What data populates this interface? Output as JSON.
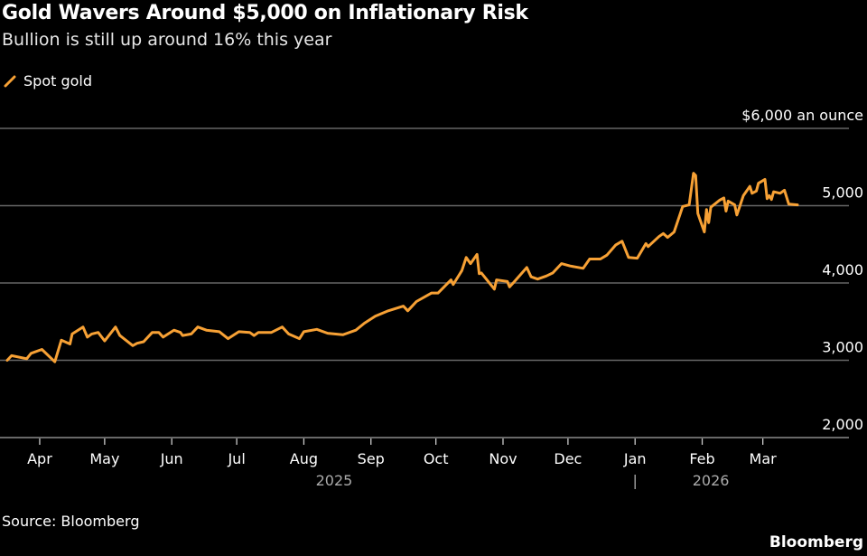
{
  "header": {
    "title": "Gold Wavers Around $5,000 on Inflationary Risk",
    "subtitle": "Bullion is still up around 16% this year"
  },
  "footer": {
    "source": "Source: Bloomberg",
    "logo": "Bloomberg"
  },
  "colors": {
    "line": "#f7a135",
    "grid": "#666666",
    "background": "#000000",
    "text": "#ffffff"
  },
  "chart_data": {
    "type": "line",
    "title": "Gold Wavers Around $5,000 on Inflationary Risk",
    "subtitle": "Bullion is still up around 16% this year",
    "legend": {
      "placement": "top-left",
      "entries": [
        "Spot gold"
      ]
    },
    "xlim": [
      "2025-03-17",
      "2026-03-17"
    ],
    "ylim": [
      2000,
      6000
    ],
    "y_ticks": [
      2000,
      3000,
      4000,
      5000,
      6000
    ],
    "y_tick_labels": [
      "2,000",
      "3,000",
      "4,000",
      "5,000",
      "$6,000 an ounce"
    ],
    "y_axis_side": "right",
    "grid": true,
    "x_ticks": [
      "2025-04-01",
      "2025-05-01",
      "2025-06-01",
      "2025-07-01",
      "2025-08-01",
      "2025-09-01",
      "2025-10-01",
      "2025-11-01",
      "2025-12-01",
      "2026-01-01",
      "2026-02-01",
      "2026-03-01"
    ],
    "x_tick_labels": [
      "Apr",
      "May",
      "Jun",
      "Jul",
      "Aug",
      "Sep",
      "Oct",
      "Nov",
      "Dec",
      "Jan",
      "Feb",
      "Mar"
    ],
    "year_labels": [
      {
        "label": "2025",
        "date": "2025-08-15"
      },
      {
        "label": "2026",
        "date": "2026-02-05"
      }
    ],
    "year_separator": {
      "label": "|",
      "date": "2026-01-01"
    },
    "series": [
      {
        "name": "Spot gold",
        "color": "#f7a135",
        "points": [
          [
            "2025-03-17",
            3000
          ],
          [
            "2025-03-19",
            3060
          ],
          [
            "2025-03-26",
            3020
          ],
          [
            "2025-03-28",
            3090
          ],
          [
            "2025-04-02",
            3140
          ],
          [
            "2025-04-08",
            2980
          ],
          [
            "2025-04-11",
            3260
          ],
          [
            "2025-04-15",
            3210
          ],
          [
            "2025-04-16",
            3340
          ],
          [
            "2025-04-21",
            3430
          ],
          [
            "2025-04-23",
            3300
          ],
          [
            "2025-04-25",
            3340
          ],
          [
            "2025-04-28",
            3360
          ],
          [
            "2025-05-01",
            3250
          ],
          [
            "2025-05-06",
            3430
          ],
          [
            "2025-05-08",
            3320
          ],
          [
            "2025-05-14",
            3190
          ],
          [
            "2025-05-16",
            3220
          ],
          [
            "2025-05-19",
            3240
          ],
          [
            "2025-05-23",
            3360
          ],
          [
            "2025-05-26",
            3360
          ],
          [
            "2025-05-28",
            3300
          ],
          [
            "2025-06-02",
            3390
          ],
          [
            "2025-06-05",
            3360
          ],
          [
            "2025-06-06",
            3320
          ],
          [
            "2025-06-10",
            3340
          ],
          [
            "2025-06-13",
            3430
          ],
          [
            "2025-06-17",
            3390
          ],
          [
            "2025-06-23",
            3370
          ],
          [
            "2025-06-27",
            3280
          ],
          [
            "2025-07-02",
            3370
          ],
          [
            "2025-07-07",
            3360
          ],
          [
            "2025-07-09",
            3320
          ],
          [
            "2025-07-11",
            3360
          ],
          [
            "2025-07-17",
            3360
          ],
          [
            "2025-07-22",
            3430
          ],
          [
            "2025-07-25",
            3340
          ],
          [
            "2025-07-30",
            3280
          ],
          [
            "2025-08-01",
            3370
          ],
          [
            "2025-08-07",
            3400
          ],
          [
            "2025-08-12",
            3350
          ],
          [
            "2025-08-19",
            3330
          ],
          [
            "2025-08-25",
            3390
          ],
          [
            "2025-08-29",
            3480
          ],
          [
            "2025-09-03",
            3570
          ],
          [
            "2025-09-09",
            3640
          ],
          [
            "2025-09-16",
            3700
          ],
          [
            "2025-09-18",
            3640
          ],
          [
            "2025-09-22",
            3760
          ],
          [
            "2025-09-29",
            3870
          ],
          [
            "2025-10-02",
            3870
          ],
          [
            "2025-10-08",
            4040
          ],
          [
            "2025-10-09",
            3980
          ],
          [
            "2025-10-13",
            4160
          ],
          [
            "2025-10-15",
            4330
          ],
          [
            "2025-10-17",
            4250
          ],
          [
            "2025-10-20",
            4370
          ],
          [
            "2025-10-21",
            4120
          ],
          [
            "2025-10-22",
            4130
          ],
          [
            "2025-10-28",
            3920
          ],
          [
            "2025-10-29",
            4040
          ],
          [
            "2025-11-03",
            4020
          ],
          [
            "2025-11-04",
            3950
          ],
          [
            "2025-11-06",
            4010
          ],
          [
            "2025-11-12",
            4200
          ],
          [
            "2025-11-14",
            4080
          ],
          [
            "2025-11-17",
            4050
          ],
          [
            "2025-11-21",
            4090
          ],
          [
            "2025-11-24",
            4130
          ],
          [
            "2025-11-28",
            4250
          ],
          [
            "2025-12-02",
            4220
          ],
          [
            "2025-12-08",
            4190
          ],
          [
            "2025-12-11",
            4310
          ],
          [
            "2025-12-16",
            4310
          ],
          [
            "2025-12-19",
            4360
          ],
          [
            "2025-12-23",
            4490
          ],
          [
            "2025-12-26",
            4540
          ],
          [
            "2025-12-29",
            4330
          ],
          [
            "2026-01-02",
            4320
          ],
          [
            "2026-01-06",
            4510
          ],
          [
            "2026-01-07",
            4470
          ],
          [
            "2026-01-12",
            4600
          ],
          [
            "2026-01-14",
            4640
          ],
          [
            "2026-01-16",
            4590
          ],
          [
            "2026-01-19",
            4660
          ],
          [
            "2026-01-23",
            4990
          ],
          [
            "2026-01-26",
            5010
          ],
          [
            "2026-01-28",
            5420
          ],
          [
            "2026-01-29",
            5390
          ],
          [
            "2026-01-30",
            4900
          ],
          [
            "2026-02-02",
            4660
          ],
          [
            "2026-02-03",
            4950
          ],
          [
            "2026-02-04",
            4780
          ],
          [
            "2026-02-05",
            4980
          ],
          [
            "2026-02-09",
            5070
          ],
          [
            "2026-02-11",
            5100
          ],
          [
            "2026-02-12",
            4930
          ],
          [
            "2026-02-13",
            5060
          ],
          [
            "2026-02-16",
            5010
          ],
          [
            "2026-02-17",
            4880
          ],
          [
            "2026-02-20",
            5130
          ],
          [
            "2026-02-23",
            5250
          ],
          [
            "2026-02-24",
            5160
          ],
          [
            "2026-02-26",
            5190
          ],
          [
            "2026-02-27",
            5290
          ],
          [
            "2026-03-02",
            5340
          ],
          [
            "2026-03-03",
            5090
          ],
          [
            "2026-03-04",
            5130
          ],
          [
            "2026-03-05",
            5080
          ],
          [
            "2026-03-06",
            5180
          ],
          [
            "2026-03-09",
            5160
          ],
          [
            "2026-03-11",
            5200
          ],
          [
            "2026-03-13",
            5020
          ],
          [
            "2026-03-17",
            5010
          ]
        ]
      }
    ]
  }
}
